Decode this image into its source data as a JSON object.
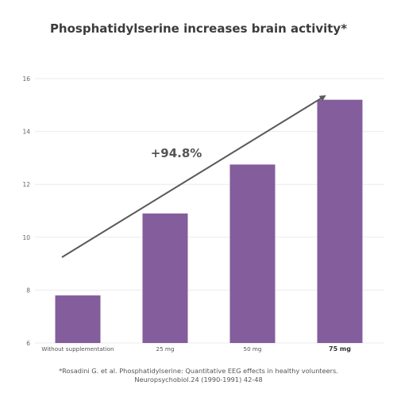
{
  "title": "Phosphatidylserine increases brain activity*",
  "annotation": "+94.8%",
  "footnote": {
    "line1": "*Rosadini G. et al. Phosphatidylserine: Quantitative EEG effects in healthy volunteers.",
    "line2": "Neuropsychobiol.24 (1990-1991) 42-48"
  },
  "colors": {
    "bar": "#845d9c",
    "grid": "#ebebeb",
    "arrow": "#5a5a5a",
    "text": "#3c3c3c"
  },
  "chart_data": {
    "type": "bar",
    "categories": [
      "Without supplementation",
      "25 mg",
      "50 mg",
      "75 mg"
    ],
    "highlighted_category": "75 mg",
    "values": [
      7.8,
      10.9,
      12.75,
      15.2
    ],
    "ylim": [
      6,
      16
    ],
    "yticks": [
      6,
      8,
      10,
      12,
      14,
      16
    ],
    "grid": true,
    "legend": "none",
    "trend_arrow": true
  }
}
